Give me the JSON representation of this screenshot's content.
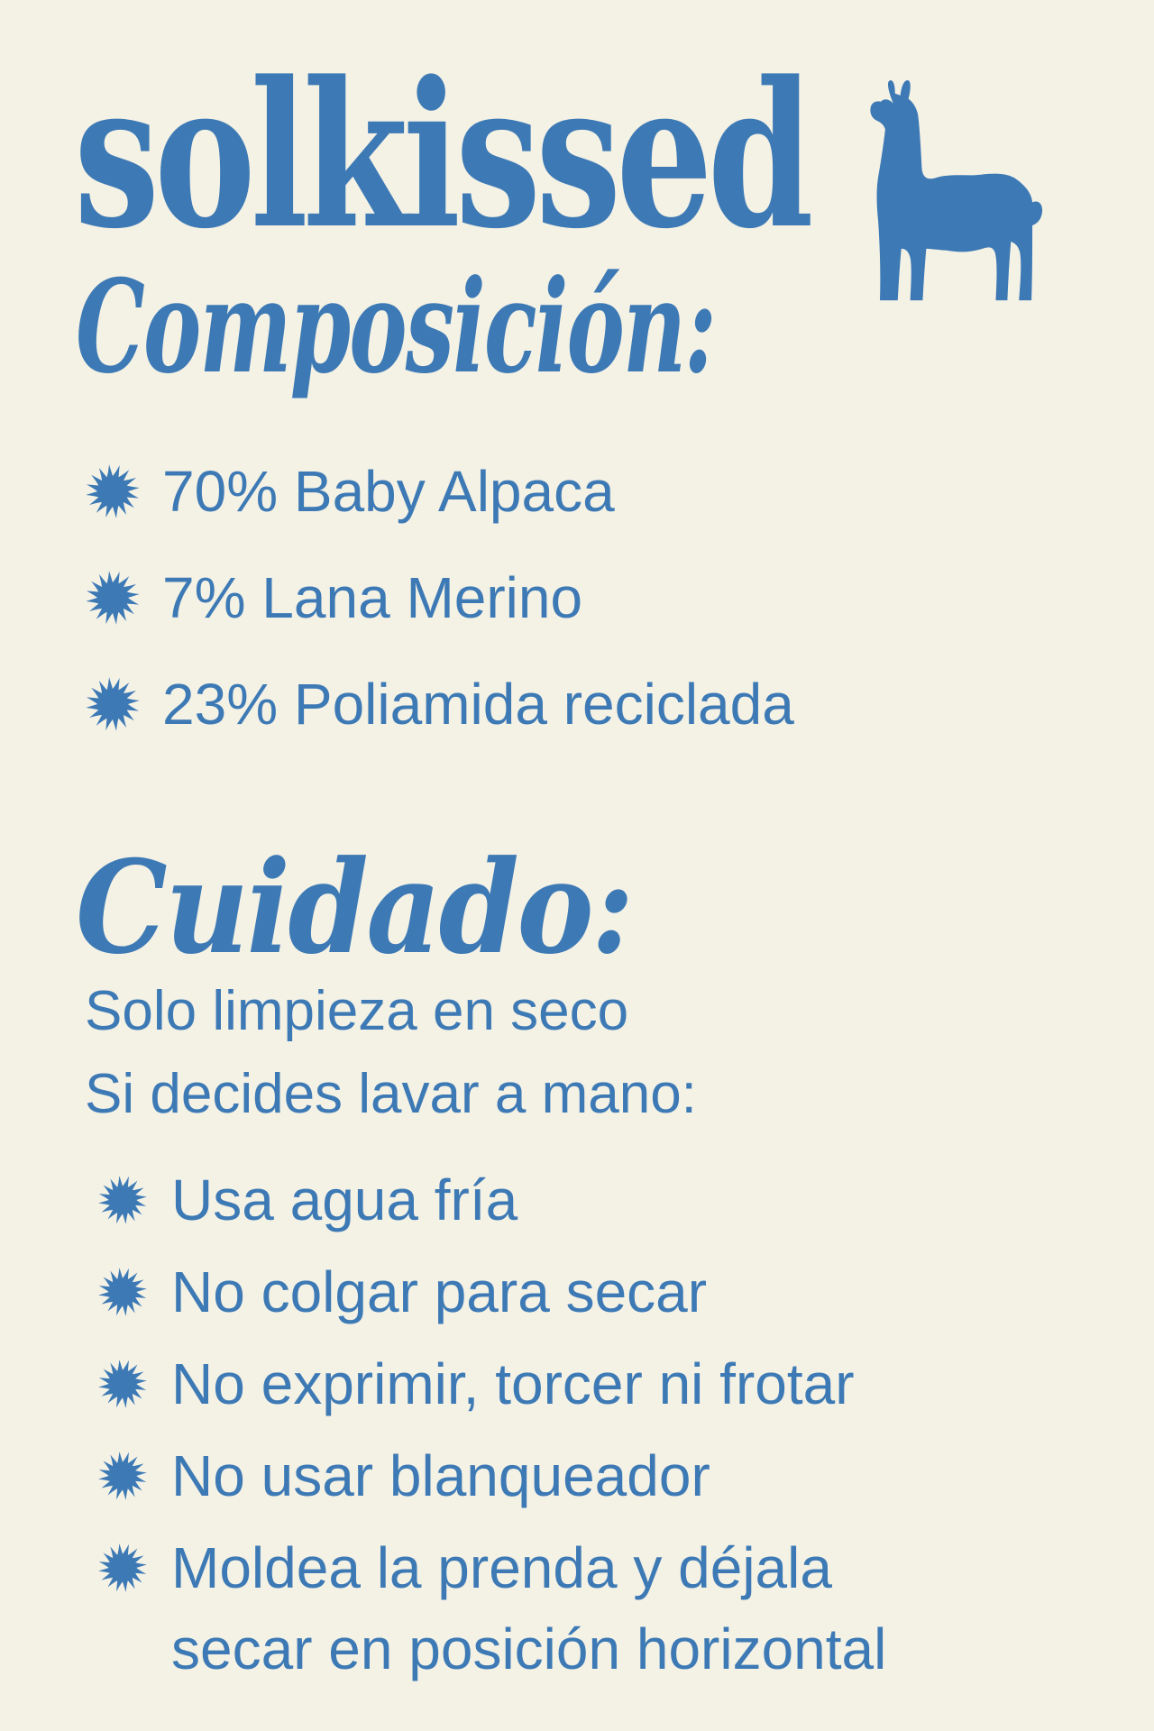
{
  "page": {
    "background_color": "#f4f1e5",
    "accent_color": "#3d7ab5"
  },
  "brand": {
    "logo_text": "solkissed",
    "mascot": "llama"
  },
  "composition": {
    "heading": "Composición:",
    "items": [
      "70% Baby Alpaca",
      "7% Lana Merino",
      "23% Poliamida reciclada"
    ]
  },
  "care": {
    "heading": "Cuidado:",
    "intro_lines": [
      "Solo limpieza en seco",
      "Si decides lavar a mano:"
    ],
    "items": [
      "Usa agua fría",
      "No colgar para secar",
      "No exprimir, torcer ni frotar",
      "No usar blanqueador",
      "Moldea la prenda y déjala secar en posición horizontal"
    ]
  },
  "icons": {
    "bullet": "sun-icon",
    "mascot": "llama-icon"
  }
}
